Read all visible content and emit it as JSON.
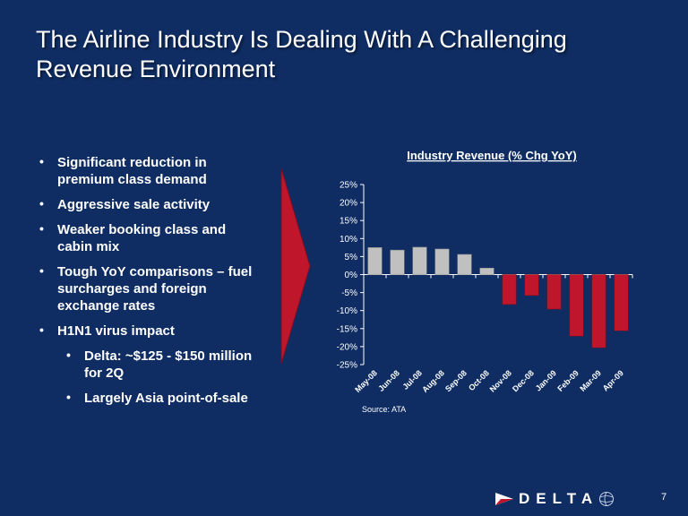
{
  "slide": {
    "title_lines": [
      "The Airline Industry Is Dealing With A Challenging",
      "Revenue Environment"
    ],
    "bullets": [
      {
        "text_lines": [
          "Significant reduction in",
          "premium class demand"
        ],
        "level": 1
      },
      {
        "text_lines": [
          "Aggressive sale activity"
        ],
        "level": 1
      },
      {
        "text_lines": [
          "Weaker booking class and",
          "cabin mix"
        ],
        "level": 1
      },
      {
        "text_lines": [
          "Tough YoY comparisons – fuel",
          "surcharges and foreign",
          "exchange rates"
        ],
        "level": 1
      },
      {
        "text_lines": [
          "H1N1 virus impact"
        ],
        "level": 1
      },
      {
        "text_lines": [
          "Delta: ~$125 - $150 million",
          "for 2Q"
        ],
        "level": 2
      },
      {
        "text_lines": [
          "Largely Asia point-of-sale"
        ],
        "level": 2
      }
    ],
    "page_number": "7",
    "logo_text": "DELTA"
  },
  "colors": {
    "background": "#0f2d63",
    "positive_bar": "#c0c0c0",
    "negative_bar": "#c0162c",
    "arrow": "#c0162c"
  },
  "icons": {
    "logo_mark": "delta-triangle-icon",
    "logo_globe": "skyteam-globe-icon"
  },
  "chart_data": {
    "type": "bar",
    "title": "Industry Revenue (% Chg YoY)",
    "categories": [
      "May-08",
      "Jun-08",
      "Jul-08",
      "Aug-08",
      "Sep-08",
      "Oct-08",
      "Nov-08",
      "Dec-08",
      "Jan-09",
      "Feb-09",
      "Mar-09",
      "Apr-09"
    ],
    "values": [
      7.5,
      6.8,
      7.6,
      7.1,
      5.6,
      1.8,
      -8.3,
      -5.8,
      -9.6,
      -17.1,
      -20.3,
      -15.6
    ],
    "ylim": [
      -25,
      25
    ],
    "yticks": [
      "25%",
      "20%",
      "15%",
      "10%",
      "5%",
      "0%",
      "-5%",
      "-10%",
      "-15%",
      "-20%",
      "-25%"
    ],
    "source": "Source:  ATA",
    "grid": false,
    "legend": "none"
  }
}
